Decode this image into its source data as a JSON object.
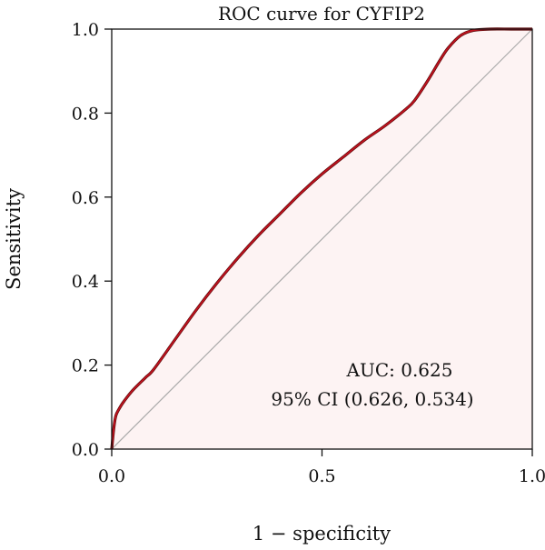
{
  "chart_data": {
    "type": "line",
    "title": "ROC curve for CYFIP2",
    "xlabel": "1 − specificity",
    "ylabel": "Sensitivity",
    "xlim": [
      0.0,
      1.0
    ],
    "ylim": [
      0.0,
      1.0
    ],
    "x_ticks": [
      "0.0",
      "0.5",
      "1.0"
    ],
    "y_ticks": [
      "0.0",
      "0.2",
      "0.4",
      "0.6",
      "0.8",
      "1.0"
    ],
    "grid": false,
    "legend": "none",
    "shaded_area_under_curve": true,
    "reference_line": {
      "x": [
        0.0,
        1.0
      ],
      "y": [
        0.0,
        1.0
      ]
    },
    "series": [
      {
        "x": [
          0.0,
          0.005,
          0.01,
          0.02,
          0.03,
          0.05,
          0.08,
          0.1,
          0.15,
          0.2,
          0.25,
          0.3,
          0.35,
          0.4,
          0.45,
          0.5,
          0.55,
          0.6,
          0.65,
          0.7,
          0.72,
          0.75,
          0.78,
          0.8,
          0.83,
          0.86,
          0.9,
          0.95,
          1.0
        ],
        "y": [
          0.0,
          0.05,
          0.08,
          0.1,
          0.115,
          0.14,
          0.17,
          0.19,
          0.26,
          0.33,
          0.395,
          0.455,
          0.51,
          0.56,
          0.61,
          0.655,
          0.695,
          0.735,
          0.77,
          0.81,
          0.83,
          0.875,
          0.925,
          0.955,
          0.985,
          0.997,
          1.0,
          1.0,
          1.0
        ]
      }
    ],
    "annotations": [
      "AUC: 0.625",
      "95% CI (0.626, 0.534)"
    ],
    "colors": {
      "curve": "#c1121f",
      "curve_outline": "#5a0a0a",
      "reference": "#aaaaaa",
      "fill": "#fdf3f3"
    }
  }
}
